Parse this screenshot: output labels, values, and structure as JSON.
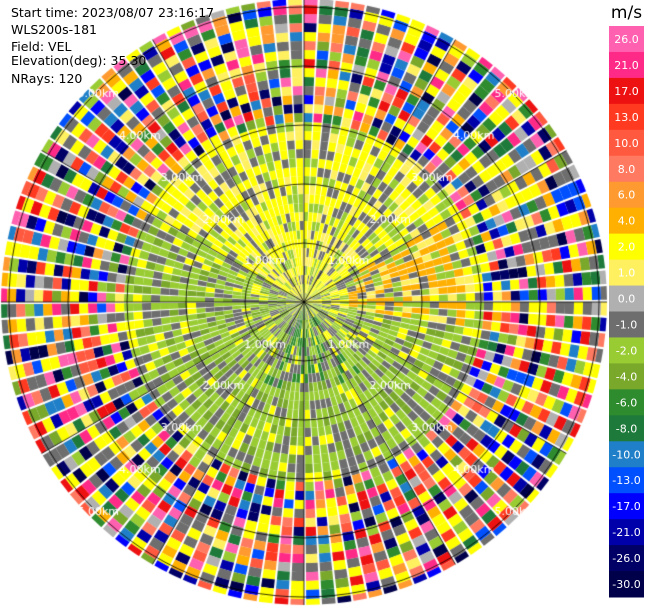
{
  "header": {
    "start_time": "Start time: 2023/08/07 23:16:17",
    "instrument": "WLS200s-181",
    "field": "Field: VEL",
    "elevation": "Elevation(deg): 35.30",
    "nrays": "NRays: 120"
  },
  "chart_data": {
    "type": "heatmap",
    "projection": "polar-ppi",
    "field": "VEL",
    "n_rays": 120,
    "elevation_deg": 35.3,
    "range_rings_km": [
      1,
      2,
      3,
      4,
      5
    ],
    "range_ring_labels": [
      "1.00km",
      "2.00km",
      "3.00km",
      "4.00km",
      "5.00km"
    ],
    "radial_lines_deg": [
      0,
      30,
      60,
      90,
      120,
      150,
      180,
      210,
      240,
      270,
      300,
      330
    ],
    "description_values": "Near-zero to +6 m/s (yellow/orange) in the north-east sector and 0 to -6 m/s (green) in the south/west sector out to about 3 km; noisy values beyond 3 km.",
    "colorbar": {
      "unit": "m/s",
      "ticks": [
        "26.0",
        "21.0",
        "17.0",
        "13.0",
        "10.0",
        "8.0",
        "6.0",
        "4.0",
        "2.0",
        "1.0",
        "0.0",
        "-1.0",
        "-2.0",
        "-4.0",
        "-6.0",
        "-8.0",
        "-10.0",
        "-13.0",
        "-17.0",
        "-21.0",
        "-26.0",
        "-30.0"
      ],
      "bins": [
        {
          "color": "#ff60b0"
        },
        {
          "color": "#ff2a88"
        },
        {
          "color": "#ee1111"
        },
        {
          "color": "#ff3a20"
        },
        {
          "color": "#ff5a40"
        },
        {
          "color": "#ff7a60"
        },
        {
          "color": "#ff9a30"
        },
        {
          "color": "#ffb000"
        },
        {
          "color": "#ffff00"
        },
        {
          "color": "#fff060"
        },
        {
          "color": "#b0b0b0"
        },
        {
          "color": "#6e6e6e"
        },
        {
          "color": "#99cc33"
        },
        {
          "color": "#7aa82a"
        },
        {
          "color": "#2e8b2e"
        },
        {
          "color": "#1e7a3a"
        },
        {
          "color": "#1f7fc8"
        },
        {
          "color": "#0050ff"
        },
        {
          "color": "#0000ff"
        },
        {
          "color": "#0000aa"
        },
        {
          "color": "#000066"
        },
        {
          "color": "#00004a"
        }
      ]
    }
  }
}
